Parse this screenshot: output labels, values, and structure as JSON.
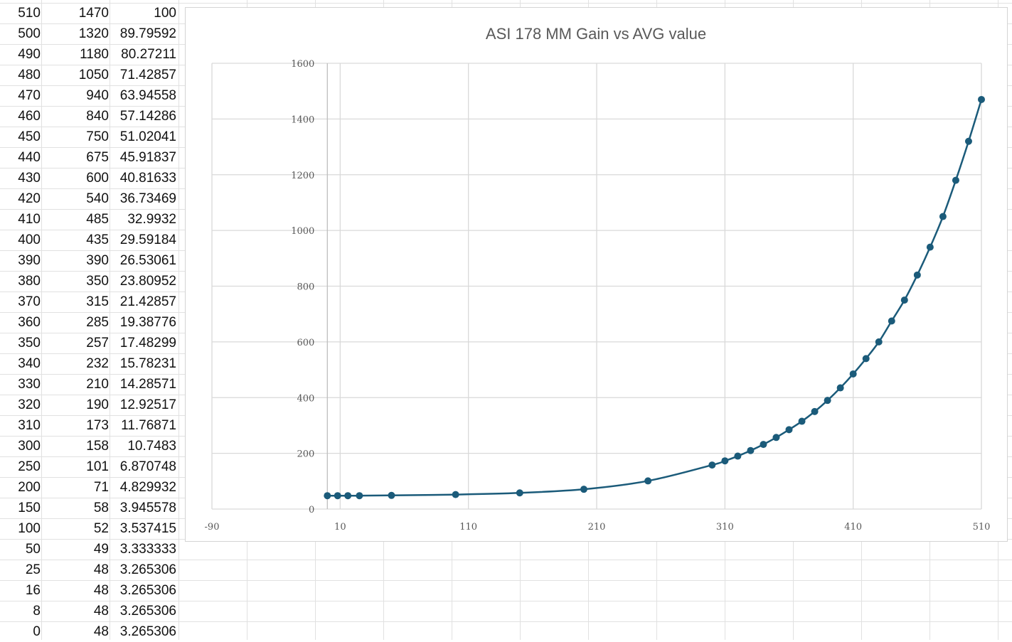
{
  "sheet": {
    "rows": [
      [
        "510",
        "1470",
        "100"
      ],
      [
        "500",
        "1320",
        "89.79592"
      ],
      [
        "490",
        "1180",
        "80.27211"
      ],
      [
        "480",
        "1050",
        "71.42857"
      ],
      [
        "470",
        "940",
        "63.94558"
      ],
      [
        "460",
        "840",
        "57.14286"
      ],
      [
        "450",
        "750",
        "51.02041"
      ],
      [
        "440",
        "675",
        "45.91837"
      ],
      [
        "430",
        "600",
        "40.81633"
      ],
      [
        "420",
        "540",
        "36.73469"
      ],
      [
        "410",
        "485",
        "32.9932"
      ],
      [
        "400",
        "435",
        "29.59184"
      ],
      [
        "390",
        "390",
        "26.53061"
      ],
      [
        "380",
        "350",
        "23.80952"
      ],
      [
        "370",
        "315",
        "21.42857"
      ],
      [
        "360",
        "285",
        "19.38776"
      ],
      [
        "350",
        "257",
        "17.48299"
      ],
      [
        "340",
        "232",
        "15.78231"
      ],
      [
        "330",
        "210",
        "14.28571"
      ],
      [
        "320",
        "190",
        "12.92517"
      ],
      [
        "310",
        "173",
        "11.76871"
      ],
      [
        "300",
        "158",
        "10.7483"
      ],
      [
        "250",
        "101",
        "6.870748"
      ],
      [
        "200",
        "71",
        "4.829932"
      ],
      [
        "150",
        "58",
        "3.945578"
      ],
      [
        "100",
        "52",
        "3.537415"
      ],
      [
        "50",
        "49",
        "3.333333"
      ],
      [
        "25",
        "48",
        "3.265306"
      ],
      [
        "16",
        "48",
        "3.265306"
      ],
      [
        "8",
        "48",
        "3.265306"
      ],
      [
        "0",
        "48",
        "3.265306"
      ]
    ]
  },
  "colors": {
    "series": "#1b5b7a",
    "gridline": "#d9d9d9",
    "sheet_grid": "#e1e1e1",
    "axis_text": "#595959"
  },
  "chart_data": {
    "type": "scatter",
    "title": "ASI 178 MM Gain vs AVG value",
    "xlabel": "",
    "ylabel": "",
    "xlim": [
      -90,
      510
    ],
    "ylim": [
      0,
      1600
    ],
    "x_ticks": [
      "-90",
      "10",
      "110",
      "210",
      "310",
      "410",
      "510"
    ],
    "y_ticks": [
      "0",
      "200",
      "400",
      "600",
      "800",
      "1000",
      "1200",
      "1400",
      "1600"
    ],
    "grid": true,
    "legend": "none",
    "series": [
      {
        "x": [
          0,
          8,
          16,
          25,
          50,
          100,
          150,
          200,
          250,
          300,
          310,
          320,
          330,
          340,
          350,
          360,
          370,
          380,
          390,
          400,
          410,
          420,
          430,
          440,
          450,
          460,
          470,
          480,
          490,
          500,
          510
        ],
        "y": [
          48,
          48,
          48,
          48,
          49,
          52,
          58,
          71,
          101,
          158,
          173,
          190,
          210,
          232,
          257,
          285,
          315,
          350,
          390,
          435,
          485,
          540,
          600,
          675,
          750,
          840,
          940,
          1050,
          1180,
          1320,
          1470
        ]
      }
    ]
  }
}
